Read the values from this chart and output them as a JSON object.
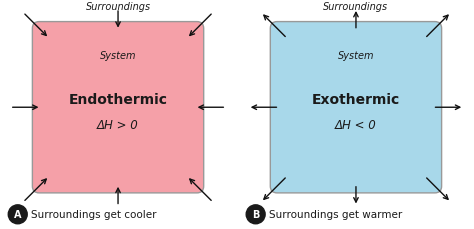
{
  "panel_a": {
    "label": "A",
    "title": "Endothermic",
    "subtitle": "ΔH > 0",
    "box_color": "#F5A0A8",
    "box_edge_color": "#999999",
    "system_label": "System",
    "surroundings_label": "Surroundings",
    "caption": "Surroundings get cooler",
    "arrows_inward": true
  },
  "panel_b": {
    "label": "B",
    "title": "Exothermic",
    "subtitle": "ΔH < 0",
    "box_color": "#A8D8EA",
    "box_edge_color": "#999999",
    "system_label": "System",
    "surroundings_label": "Surroundings",
    "caption": "Surroundings get warmer",
    "arrows_inward": false
  },
  "bg_color": "#ffffff",
  "text_color": "#1a1a1a"
}
